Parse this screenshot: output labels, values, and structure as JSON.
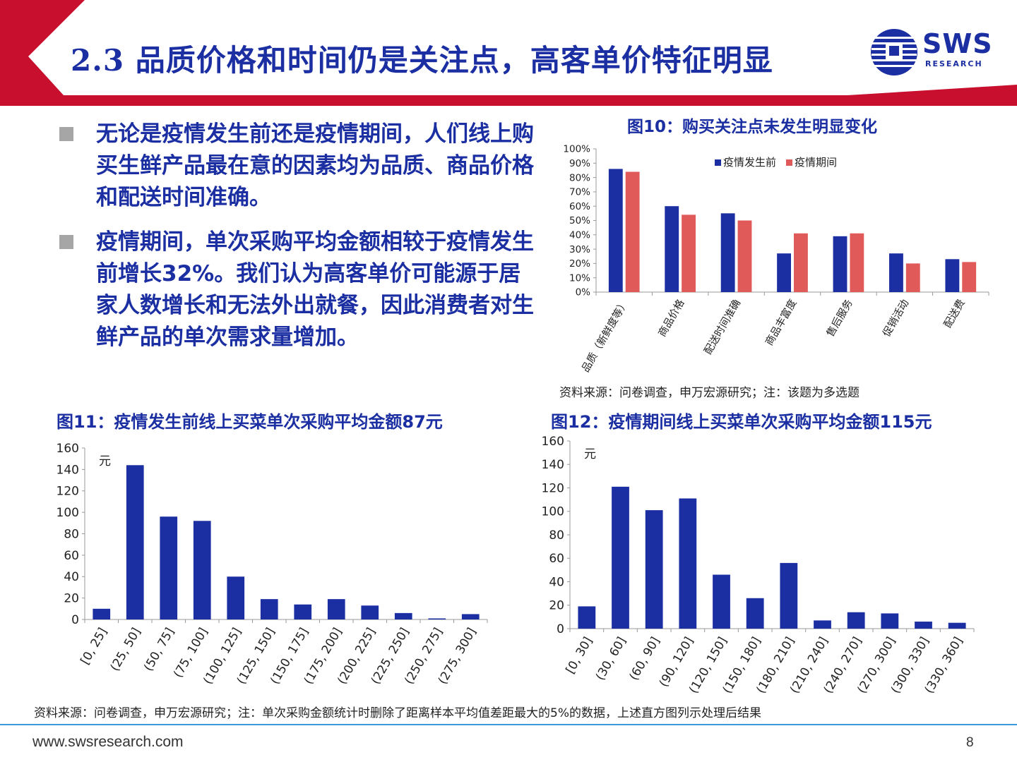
{
  "header": {
    "title": "2.3 品质价格和时间仍是关注点，高客单价特征明显",
    "logo_text": "SWS",
    "logo_sub": "RESEARCH",
    "colors": {
      "red": "#c8102e",
      "blue": "#1b2fa3"
    }
  },
  "bullets": [
    "无论是疫情发生前还是疫情期间，人们线上购买生鲜产品最在意的因素均为品质、商品价格和配送时间准确。",
    "疫情期间，单次采购平均金额相较于疫情发生前增长32%。我们认为高客单价可能源于居家人数增长和无法外出就餐，因此消费者对生鲜产品的单次需求量增加。"
  ],
  "fig10": {
    "title": "图10：购买关注点未发生明显变化",
    "note": "资料来源：问卷调查，申万宏源研究；注：该题为多选题"
  },
  "fig11": {
    "title": "图11：疫情发生前线上买菜单次采购平均金额87元"
  },
  "fig12": {
    "title": "图12：疫情期间线上买菜单次采购平均金额115元"
  },
  "bottom_note": "资料来源：问卷调查，申万宏源研究；注：单次采购金额统计时删除了距离样本平均值差距最大的5%的数据，上述直方图列示处理后结果",
  "footer": {
    "url": "www.swsresearch.com",
    "page": "8"
  },
  "chart_data": [
    {
      "type": "bar",
      "categories": [
        "品质（新鲜度等）",
        "商品价格",
        "配送时间准确",
        "商品丰富度",
        "售后服务",
        "促销活动",
        "配送费"
      ],
      "series": [
        {
          "name": "疫情发生前",
          "values": [
            86,
            60,
            55,
            27,
            39,
            27,
            23
          ],
          "color": "#1b2fa3"
        },
        {
          "name": "疫情期间",
          "values": [
            84,
            54,
            50,
            41,
            41,
            20,
            21
          ],
          "color": "#e05a5a"
        }
      ],
      "ylim": [
        0,
        100
      ],
      "yticks": [
        "0%",
        "10%",
        "20%",
        "30%",
        "40%",
        "50%",
        "60%",
        "70%",
        "80%",
        "90%",
        "100%"
      ],
      "legend": "top-center"
    },
    {
      "type": "bar",
      "categories": [
        "[0, 25]",
        "(25, 50]",
        "(50, 75]",
        "(75, 100]",
        "(100, 125]",
        "(125, 150]",
        "(150, 175]",
        "(175, 200]",
        "(200, 225]",
        "(225, 250]",
        "(250, 275]",
        "(275, 300]"
      ],
      "values": [
        10,
        144,
        96,
        92,
        40,
        19,
        14,
        19,
        13,
        6,
        1,
        5
      ],
      "ylabel": "元",
      "ylim": [
        0,
        160
      ],
      "yticks": [
        "0",
        "20",
        "40",
        "60",
        "80",
        "100",
        "120",
        "140",
        "160"
      ],
      "color": "#1b2fa3"
    },
    {
      "type": "bar",
      "categories": [
        "[0, 30]",
        "(30, 60]",
        "(60, 90]",
        "(90, 120]",
        "(120, 150]",
        "(150, 180]",
        "(180, 210]",
        "(210, 240]",
        "(240, 270]",
        "(270, 300]",
        "(300, 330]",
        "(330, 360]"
      ],
      "values": [
        19,
        121,
        101,
        111,
        46,
        26,
        56,
        7,
        14,
        13,
        6,
        5
      ],
      "ylabel": "元",
      "ylim": [
        0,
        160
      ],
      "yticks": [
        "0",
        "20",
        "40",
        "60",
        "80",
        "100",
        "120",
        "140",
        "160"
      ],
      "color": "#1b2fa3"
    }
  ]
}
